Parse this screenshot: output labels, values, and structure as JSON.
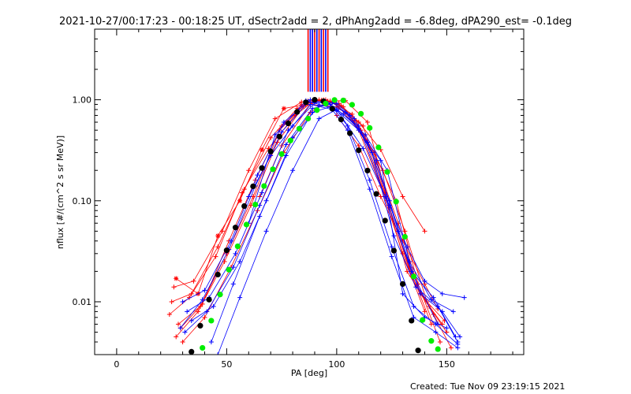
{
  "chart_data": {
    "type": "line",
    "title": "2021-10-27/00:17:23 - 00:18:25 UT, dSectr2add = 2, dPhAng2add = -6.8deg, dPA290_est= -0.1deg",
    "xlabel": "PA [deg]",
    "ylabel": "nflux [#/(cm^2 s sr MeV)]",
    "xlim": [
      -10,
      185
    ],
    "ylim": [
      0.003,
      5.0
    ],
    "yscale": "log",
    "x_ticks": [
      0,
      50,
      100,
      150
    ],
    "x_tick_labels": [
      "0",
      "50",
      "100",
      "150"
    ],
    "y_ticks": [
      0.01,
      0.1,
      1.0
    ],
    "y_tick_labels": [
      "0.01",
      "0.10",
      "1.00"
    ],
    "grid": false,
    "legend": "none",
    "colors": {
      "red": "#ff0000",
      "blue": "#0000ff",
      "black": "#000000",
      "green": "#00ee00"
    },
    "series": [
      {
        "color": "red",
        "marker": "plus",
        "x": [
          26,
          35,
          48,
          60,
          72,
          84,
          92,
          100,
          110,
          120,
          130,
          140
        ],
        "y": [
          0.014,
          0.016,
          0.05,
          0.2,
          0.65,
          0.95,
          1.0,
          0.9,
          0.5,
          0.14,
          0.03,
          0.008
        ]
      },
      {
        "color": "red",
        "marker": "plus",
        "x": [
          25,
          34,
          46,
          58,
          70,
          82,
          90,
          98,
          108,
          118,
          128,
          138,
          148
        ],
        "y": [
          0.01,
          0.012,
          0.035,
          0.13,
          0.42,
          0.82,
          0.98,
          0.94,
          0.62,
          0.24,
          0.06,
          0.012,
          0.006
        ]
      },
      {
        "color": "red",
        "marker": "plus",
        "x": [
          28,
          38,
          50,
          62,
          74,
          86,
          94,
          102,
          112,
          122,
          132,
          142,
          150
        ],
        "y": [
          0.006,
          0.009,
          0.03,
          0.11,
          0.5,
          0.92,
          1.0,
          0.88,
          0.55,
          0.12,
          0.02,
          0.009,
          0.005
        ]
      },
      {
        "color": "red",
        "marker": "plus",
        "x": [
          27,
          37,
          49,
          61,
          73,
          85,
          93,
          101,
          111,
          121,
          131,
          141,
          149
        ],
        "y": [
          0.0045,
          0.008,
          0.025,
          0.09,
          0.38,
          0.86,
          0.99,
          0.92,
          0.5,
          0.2,
          0.05,
          0.01,
          0.0065
        ]
      },
      {
        "color": "red",
        "marker": "plus",
        "x": [
          24,
          33,
          45,
          57,
          69,
          81,
          89,
          97,
          107,
          117,
          127,
          137,
          147
        ],
        "y": [
          0.0075,
          0.011,
          0.028,
          0.12,
          0.33,
          0.7,
          0.95,
          0.97,
          0.72,
          0.3,
          0.1,
          0.015,
          0.004
        ]
      },
      {
        "color": "red",
        "marker": "plus",
        "x": [
          29,
          39,
          51,
          63,
          75,
          87,
          95,
          103,
          113,
          123,
          133,
          143
        ],
        "y": [
          0.0055,
          0.0095,
          0.04,
          0.16,
          0.55,
          0.97,
          1.0,
          0.85,
          0.4,
          0.1,
          0.022,
          0.006
        ]
      },
      {
        "color": "red",
        "marker": "plus",
        "x": [
          30,
          40,
          52,
          64,
          76,
          88,
          96,
          104,
          114,
          124,
          134,
          144,
          152
        ],
        "y": [
          0.004,
          0.007,
          0.022,
          0.08,
          0.3,
          0.75,
          0.97,
          0.98,
          0.6,
          0.085,
          0.018,
          0.0075,
          0.0035
        ]
      },
      {
        "color": "red",
        "marker": "plus",
        "x": [
          65,
          75,
          88,
          100,
          110,
          120,
          130,
          140
        ],
        "y": [
          0.11,
          0.35,
          0.9,
          0.85,
          0.6,
          0.32,
          0.11,
          0.05
        ]
      },
      {
        "color": "red",
        "marker": "asterisk",
        "x": [
          27,
          37,
          46,
          56,
          66,
          76,
          84
        ],
        "y": [
          0.017,
          0.012,
          0.045,
          0.1,
          0.32,
          0.82,
          0.88
        ]
      },
      {
        "color": "red",
        "marker": "plus",
        "x": [
          100,
          110,
          120,
          130,
          140,
          146
        ],
        "y": [
          0.7,
          0.35,
          0.11,
          0.04,
          0.015,
          0.0085
        ]
      },
      {
        "color": "blue",
        "marker": "plus",
        "x": [
          30,
          40,
          52,
          64,
          76,
          88,
          96,
          104,
          114,
          124,
          134,
          144,
          154
        ],
        "y": [
          0.01,
          0.013,
          0.04,
          0.18,
          0.6,
          1.0,
          0.92,
          0.75,
          0.38,
          0.1,
          0.02,
          0.011,
          0.0045
        ]
      },
      {
        "color": "blue",
        "marker": "plus",
        "x": [
          32,
          42,
          54,
          66,
          78,
          90,
          98,
          106,
          116,
          126,
          136,
          146,
          155
        ],
        "y": [
          0.008,
          0.011,
          0.03,
          0.12,
          0.5,
          0.93,
          0.94,
          0.7,
          0.3,
          0.045,
          0.014,
          0.009,
          0.004
        ]
      },
      {
        "color": "blue",
        "marker": "plus",
        "x": [
          34,
          44,
          56,
          68,
          80,
          92,
          100,
          108,
          118,
          128,
          138,
          148,
          156
        ],
        "y": [
          0.0065,
          0.009,
          0.025,
          0.1,
          0.42,
          0.88,
          0.92,
          0.65,
          0.25,
          0.05,
          0.012,
          0.008,
          0.0045
        ]
      },
      {
        "color": "blue",
        "marker": "plus",
        "x": [
          29,
          39,
          51,
          63,
          75,
          87,
          95,
          103,
          113,
          123,
          133,
          143,
          153
        ],
        "y": [
          0.0055,
          0.0105,
          0.033,
          0.14,
          0.48,
          0.95,
          0.96,
          0.72,
          0.45,
          0.2,
          0.025,
          0.0105,
          0.008
        ]
      },
      {
        "color": "blue",
        "marker": "plus",
        "x": [
          31,
          41,
          53,
          65,
          77,
          89,
          97,
          105,
          115,
          125,
          135,
          145,
          155
        ],
        "y": [
          0.005,
          0.008,
          0.022,
          0.09,
          0.36,
          0.82,
          0.9,
          0.55,
          0.16,
          0.035,
          0.009,
          0.006,
          0.0038
        ]
      },
      {
        "color": "blue",
        "marker": "plus",
        "x": [
          43,
          53,
          65,
          77,
          89,
          97,
          105,
          115,
          125,
          135,
          145,
          155
        ],
        "y": [
          0.004,
          0.015,
          0.07,
          0.28,
          0.75,
          0.85,
          0.5,
          0.13,
          0.028,
          0.007,
          0.005,
          0.0035
        ]
      },
      {
        "color": "blue",
        "marker": "plus",
        "x": [
          46,
          56,
          68,
          80,
          92,
          100,
          110,
          122,
          134,
          146
        ],
        "y": [
          0.003,
          0.011,
          0.05,
          0.2,
          0.65,
          0.8,
          0.55,
          0.11,
          0.02,
          0.006
        ]
      },
      {
        "color": "blue",
        "marker": "plus",
        "x": [
          60,
          70,
          80,
          88,
          100,
          110,
          120,
          130,
          140,
          150
        ],
        "y": [
          0.11,
          0.28,
          0.55,
          0.9,
          0.78,
          0.5,
          0.25,
          0.012,
          0.007,
          0.0055
        ]
      },
      {
        "color": "blue",
        "marker": "plus",
        "x": [
          60,
          72,
          86,
          100,
          112,
          124,
          132,
          140,
          148,
          158
        ],
        "y": [
          0.06,
          0.45,
          0.98,
          0.8,
          0.33,
          0.09,
          0.035,
          0.016,
          0.012,
          0.011
        ]
      },
      {
        "color": "black",
        "marker": "dot",
        "x": [
          34,
          38,
          42,
          46,
          50,
          54,
          58,
          62,
          66,
          70,
          74,
          78,
          82,
          86,
          90,
          94,
          98,
          102,
          106,
          110,
          114,
          118,
          122,
          126,
          130,
          134,
          137
        ],
        "y": [
          0.0032,
          0.0058,
          0.0105,
          0.0186,
          0.0323,
          0.0544,
          0.0886,
          0.139,
          0.211,
          0.308,
          0.432,
          0.584,
          0.758,
          0.944,
          0.999,
          0.966,
          0.813,
          0.638,
          0.466,
          0.316,
          0.199,
          0.117,
          0.0636,
          0.0321,
          0.015,
          0.0065,
          0.0033
        ]
      },
      {
        "color": "green",
        "marker": "dot",
        "x": [
          39,
          43,
          47,
          51,
          55,
          59,
          63,
          67,
          71,
          75,
          79,
          83,
          87,
          91,
          95,
          99,
          103,
          107,
          111,
          115,
          119,
          123,
          127,
          131,
          135,
          139,
          143,
          146
        ],
        "y": [
          0.0035,
          0.0065,
          0.0118,
          0.0208,
          0.0354,
          0.0581,
          0.0918,
          0.14,
          0.205,
          0.29,
          0.395,
          0.517,
          0.651,
          0.79,
          0.918,
          0.995,
          0.985,
          0.892,
          0.727,
          0.526,
          0.338,
          0.193,
          0.098,
          0.044,
          0.0178,
          0.0066,
          0.0041,
          0.0034
        ]
      }
    ],
    "vertical_markers": [
      {
        "color": "red",
        "x": 87
      },
      {
        "color": "blue",
        "x": 88
      },
      {
        "color": "blue",
        "x": 89
      },
      {
        "color": "red",
        "x": 90
      },
      {
        "color": "blue",
        "x": 91
      },
      {
        "color": "red",
        "x": 92
      },
      {
        "color": "blue",
        "x": 93
      },
      {
        "color": "red",
        "x": 94
      },
      {
        "color": "blue",
        "x": 95
      },
      {
        "color": "red",
        "x": 96
      }
    ]
  },
  "footer": {
    "created": "Created: Tue Nov 09 23:19:15 2021"
  }
}
